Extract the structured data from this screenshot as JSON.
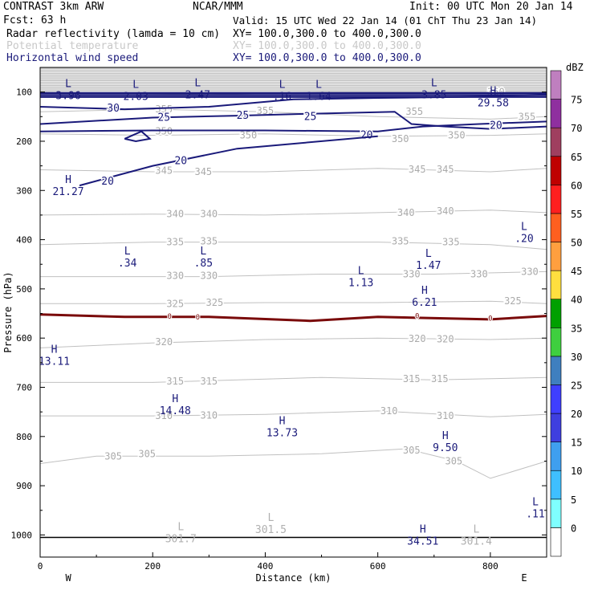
{
  "header": {
    "model": "CONTRAST  3km ARW",
    "org": "NCAR/MMM",
    "init": "Init: 00 UTC Mon 20 Jan 14",
    "fcst": "Fcst:   63 h",
    "valid": "Valid: 15 UTC Wed 22 Jan 14 (01 ChT Thu 23 Jan 14)",
    "fields": [
      {
        "name": "Radar reflectivity (lamda = 10 cm)",
        "xy": "XY= 100.0,300.0 to 400.0,300.0",
        "color": "#000000"
      },
      {
        "name": "Potential temperature",
        "xy": "XY= 100.0,300.0 to 400.0,300.0",
        "color": "#c8c8c8"
      },
      {
        "name": "Horizontal wind speed",
        "xy": "XY= 100.0,300.0 to 400.0,300.0",
        "color": "#1a1a7a"
      }
    ]
  },
  "chart_data": {
    "type": "contour-cross-section",
    "xlabel": "Distance (km)",
    "ylabel": "Pressure (hPa)",
    "xlim": [
      0,
      900
    ],
    "ylim": [
      1045,
      50
    ],
    "x_ticks": [
      "0",
      "200",
      "400",
      "600",
      "800"
    ],
    "y_ticks": [
      "100",
      "200",
      "300",
      "400",
      "500",
      "600",
      "700",
      "800",
      "900",
      "1000"
    ],
    "x_end_labels": {
      "left": "W",
      "right": "E"
    },
    "colorbar": {
      "unit": "dBZ",
      "levels": [
        "0",
        "5",
        "10",
        "15",
        "20",
        "25",
        "30",
        "35",
        "40",
        "45",
        "50",
        "55",
        "60",
        "65",
        "70",
        "75"
      ],
      "colors": [
        "#ffffff",
        "#7fffff",
        "#3fbfff",
        "#3f9fef",
        "#3f3fdf",
        "#3f3fff",
        "#3f7fbf",
        "#3fcf3f",
        "#00a000",
        "#ffdf3f",
        "#ff9f3f",
        "#ff5f1f",
        "#ff1f1f",
        "#bf0000",
        "#9f3f5f",
        "#8f2f9f",
        "#bf7fbf"
      ]
    },
    "theta_contours": [
      {
        "value": 305,
        "points": [
          [
            0,
            855
          ],
          [
            100,
            840
          ],
          [
            300,
            840
          ],
          [
            500,
            835
          ],
          [
            650,
            825
          ],
          [
            740,
            850
          ],
          [
            800,
            885
          ],
          [
            900,
            850
          ]
        ],
        "labels": [
          [
            130,
            840
          ],
          [
            190,
            835
          ],
          [
            660,
            828
          ],
          [
            735,
            850
          ]
        ]
      },
      {
        "value": 310,
        "points": [
          [
            0,
            758
          ],
          [
            200,
            758
          ],
          [
            400,
            755
          ],
          [
            600,
            748
          ],
          [
            800,
            760
          ],
          [
            900,
            755
          ]
        ],
        "labels": [
          [
            220,
            758
          ],
          [
            300,
            757
          ],
          [
            620,
            748
          ],
          [
            720,
            758
          ]
        ]
      },
      {
        "value": 315,
        "points": [
          [
            0,
            690
          ],
          [
            200,
            690
          ],
          [
            500,
            680
          ],
          [
            700,
            685
          ],
          [
            900,
            680
          ]
        ],
        "labels": [
          [
            240,
            688
          ],
          [
            300,
            688
          ],
          [
            660,
            683
          ],
          [
            710,
            683
          ]
        ]
      },
      {
        "value": 320,
        "points": [
          [
            0,
            620
          ],
          [
            200,
            610
          ],
          [
            400,
            603
          ],
          [
            600,
            600
          ],
          [
            800,
            603
          ],
          [
            900,
            600
          ]
        ],
        "labels": [
          [
            220,
            608
          ],
          [
            670,
            601
          ],
          [
            720,
            602
          ]
        ]
      },
      {
        "value": 325,
        "points": [
          [
            0,
            530
          ],
          [
            200,
            530
          ],
          [
            400,
            528
          ],
          [
            600,
            528
          ],
          [
            800,
            525
          ],
          [
            900,
            530
          ]
        ],
        "labels": [
          [
            240,
            530
          ],
          [
            310,
            528
          ],
          [
            840,
            525
          ]
        ]
      },
      {
        "value": 330,
        "points": [
          [
            0,
            475
          ],
          [
            300,
            475
          ],
          [
            500,
            470
          ],
          [
            700,
            470
          ],
          [
            900,
            465
          ]
        ],
        "labels": [
          [
            240,
            473
          ],
          [
            300,
            473
          ],
          [
            660,
            470
          ],
          [
            780,
            470
          ],
          [
            870,
            465
          ]
        ]
      },
      {
        "value": 335,
        "points": [
          [
            0,
            410
          ],
          [
            200,
            405
          ],
          [
            400,
            405
          ],
          [
            600,
            405
          ],
          [
            800,
            410
          ],
          [
            900,
            420
          ]
        ],
        "labels": [
          [
            240,
            405
          ],
          [
            300,
            403
          ],
          [
            640,
            403
          ],
          [
            730,
            405
          ]
        ]
      },
      {
        "value": 340,
        "points": [
          [
            0,
            350
          ],
          [
            200,
            348
          ],
          [
            400,
            350
          ],
          [
            600,
            345
          ],
          [
            800,
            340
          ],
          [
            900,
            345
          ]
        ],
        "labels": [
          [
            240,
            348
          ],
          [
            300,
            348
          ],
          [
            650,
            345
          ],
          [
            720,
            342
          ]
        ]
      },
      {
        "value": 345,
        "points": [
          [
            0,
            258
          ],
          [
            200,
            262
          ],
          [
            400,
            262
          ],
          [
            600,
            255
          ],
          [
            800,
            262
          ],
          [
            900,
            255
          ]
        ],
        "labels": [
          [
            220,
            260
          ],
          [
            290,
            262
          ],
          [
            670,
            257
          ],
          [
            720,
            257
          ]
        ]
      },
      {
        "value": 350,
        "points": [
          [
            0,
            185
          ],
          [
            200,
            188
          ],
          [
            400,
            185
          ],
          [
            600,
            190
          ],
          [
            800,
            188
          ],
          [
            900,
            185
          ]
        ],
        "labels": [
          [
            220,
            180
          ],
          [
            370,
            188
          ],
          [
            640,
            195
          ],
          [
            740,
            188
          ]
        ]
      },
      {
        "value": 355,
        "points": [
          [
            0,
            140
          ],
          [
            200,
            135
          ],
          [
            400,
            140
          ],
          [
            600,
            150
          ],
          [
            800,
            155
          ],
          [
            900,
            150
          ]
        ],
        "labels": [
          [
            220,
            135
          ],
          [
            400,
            138
          ],
          [
            665,
            140
          ],
          [
            865,
            150
          ]
        ]
      },
      {
        "value": 360,
        "points": [
          [
            0,
            100
          ],
          [
            300,
            105
          ],
          [
            500,
            100
          ],
          [
            700,
            100
          ],
          [
            900,
            100
          ]
        ],
        "labels": [
          [
            810,
            100
          ]
        ]
      }
    ],
    "wind_contours": [
      {
        "value": 30,
        "points": [
          [
            0,
            130
          ],
          [
            150,
            135
          ],
          [
            300,
            130
          ],
          [
            450,
            115
          ],
          [
            600,
            112
          ],
          [
            750,
            110
          ],
          [
            900,
            105
          ]
        ],
        "labels": [
          [
            130,
            133
          ]
        ]
      },
      {
        "value": 25,
        "points": [
          [
            0,
            165
          ],
          [
            200,
            152
          ],
          [
            350,
            148
          ],
          [
            450,
            145
          ],
          [
            630,
            140
          ],
          [
            660,
            165
          ],
          [
            720,
            170
          ],
          [
            800,
            175
          ],
          [
            900,
            170
          ]
        ],
        "labels": [
          [
            220,
            152
          ],
          [
            360,
            148
          ],
          [
            480,
            150
          ]
        ]
      },
      {
        "value": 20,
        "points": [
          [
            0,
            180
          ],
          [
            200,
            178
          ],
          [
            400,
            178
          ],
          [
            600,
            180
          ],
          [
            680,
            170
          ],
          [
            780,
            165
          ],
          [
            900,
            160
          ]
        ],
        "labels": [
          [
            580,
            188
          ],
          [
            810,
            168
          ]
        ]
      },
      {
        "value": 20,
        "points": [
          [
            70,
            290
          ],
          [
            200,
            250
          ],
          [
            350,
            215
          ],
          [
            600,
            190
          ]
        ],
        "labels": [
          [
            120,
            282
          ],
          [
            250,
            240
          ]
        ]
      }
    ],
    "zero_line": {
      "value": 0,
      "points": [
        [
          0,
          552
        ],
        [
          150,
          557
        ],
        [
          300,
          557
        ],
        [
          480,
          565
        ],
        [
          600,
          557
        ],
        [
          800,
          562
        ],
        [
          900,
          555
        ]
      ],
      "labels": [
        [
          230,
          556
        ],
        [
          280,
          557
        ],
        [
          670,
          555
        ],
        [
          800,
          560
        ]
      ]
    },
    "surface_line": {
      "points": [
        [
          0,
          1005
        ],
        [
          900,
          1005
        ]
      ]
    },
    "hl_marks": [
      {
        "letter": "L",
        "value": "3.96",
        "x": 50,
        "y": 90,
        "color": "navy"
      },
      {
        "letter": "L",
        "value": "2.03",
        "x": 170,
        "y": 92,
        "color": "navy"
      },
      {
        "letter": "L",
        "value": "2.47",
        "x": 280,
        "y": 88,
        "color": "navy"
      },
      {
        "letter": "L",
        "value": ".16",
        "x": 430,
        "y": 92,
        "color": "navy"
      },
      {
        "letter": "L",
        "value": "1.64",
        "x": 495,
        "y": 92,
        "color": "navy"
      },
      {
        "letter": "L",
        "value": "3.85",
        "x": 700,
        "y": 88,
        "color": "navy"
      },
      {
        "letter": "H",
        "value": "29.58",
        "x": 805,
        "y": 105,
        "color": "navy"
      },
      {
        "letter": "H",
        "value": "21.27",
        "x": 50,
        "y": 285,
        "color": "navy"
      },
      {
        "letter": "L",
        "value": ".20",
        "x": 860,
        "y": 380,
        "color": "navy"
      },
      {
        "letter": "L",
        "value": ".34",
        "x": 155,
        "y": 430,
        "color": "navy"
      },
      {
        "letter": "L",
        "value": ".85",
        "x": 290,
        "y": 430,
        "color": "navy"
      },
      {
        "letter": "L",
        "value": "1.13",
        "x": 570,
        "y": 470,
        "color": "navy"
      },
      {
        "letter": "L",
        "value": "1.47",
        "x": 690,
        "y": 435,
        "color": "navy"
      },
      {
        "letter": "H",
        "value": "6.21",
        "x": 683,
        "y": 510,
        "color": "navy"
      },
      {
        "letter": "H",
        "value": "13.11",
        "x": 25,
        "y": 630,
        "color": "navy"
      },
      {
        "letter": "H",
        "value": "14.48",
        "x": 240,
        "y": 730,
        "color": "navy"
      },
      {
        "letter": "H",
        "value": "13.73",
        "x": 430,
        "y": 775,
        "color": "navy"
      },
      {
        "letter": "H",
        "value": "9.50",
        "x": 720,
        "y": 805,
        "color": "navy"
      },
      {
        "letter": "L",
        "value": ".11",
        "x": 880,
        "y": 940,
        "color": "navy"
      },
      {
        "letter": "L",
        "value": "301.7",
        "x": 250,
        "y": 990,
        "color": "gray"
      },
      {
        "letter": "L",
        "value": "301.5",
        "x": 410,
        "y": 972,
        "color": "gray"
      },
      {
        "letter": "H",
        "value": "34.51",
        "x": 680,
        "y": 995,
        "color": "navy"
      },
      {
        "letter": "L",
        "value": "301.4",
        "x": 775,
        "y": 995,
        "color": "gray"
      }
    ]
  }
}
